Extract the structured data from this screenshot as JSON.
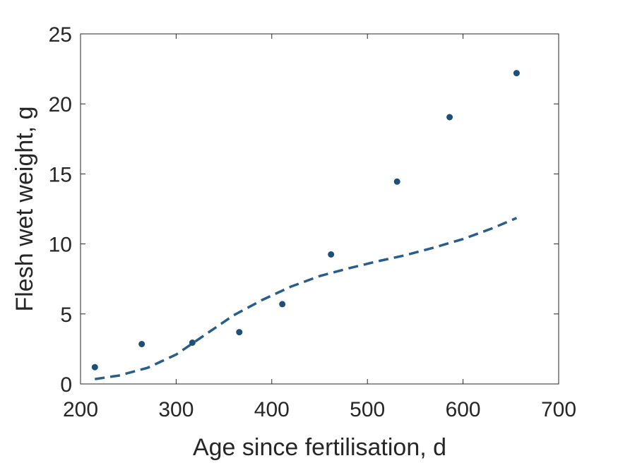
{
  "chart_data": {
    "type": "scatter",
    "xlabel": "Age since fertilisation, d",
    "ylabel": "Flesh wet weight, g",
    "xlim": [
      200,
      700
    ],
    "ylim": [
      0,
      25
    ],
    "xticks": [
      200,
      300,
      400,
      500,
      600,
      700
    ],
    "yticks": [
      0,
      5,
      10,
      15,
      20,
      25
    ],
    "grid": false,
    "legend": "none",
    "colors": {
      "points": "#1f4e79",
      "fit": "#2a5d87",
      "axis": "#262626"
    },
    "series": [
      {
        "kind": "points",
        "x": [
          215,
          264,
          317,
          366,
          411,
          462,
          531,
          586,
          656
        ],
        "y": [
          1.2,
          2.85,
          2.95,
          3.7,
          5.7,
          9.25,
          14.45,
          19.05,
          22.2
        ]
      },
      {
        "kind": "dashed-line",
        "x": [
          215,
          240,
          270,
          300,
          330,
          360,
          390,
          420,
          450,
          480,
          510,
          540,
          570,
          600,
          630,
          656
        ],
        "y": [
          0.35,
          0.6,
          1.15,
          2.1,
          3.5,
          4.9,
          6.0,
          6.95,
          7.7,
          8.25,
          8.75,
          9.2,
          9.75,
          10.35,
          11.1,
          11.85
        ]
      }
    ]
  }
}
